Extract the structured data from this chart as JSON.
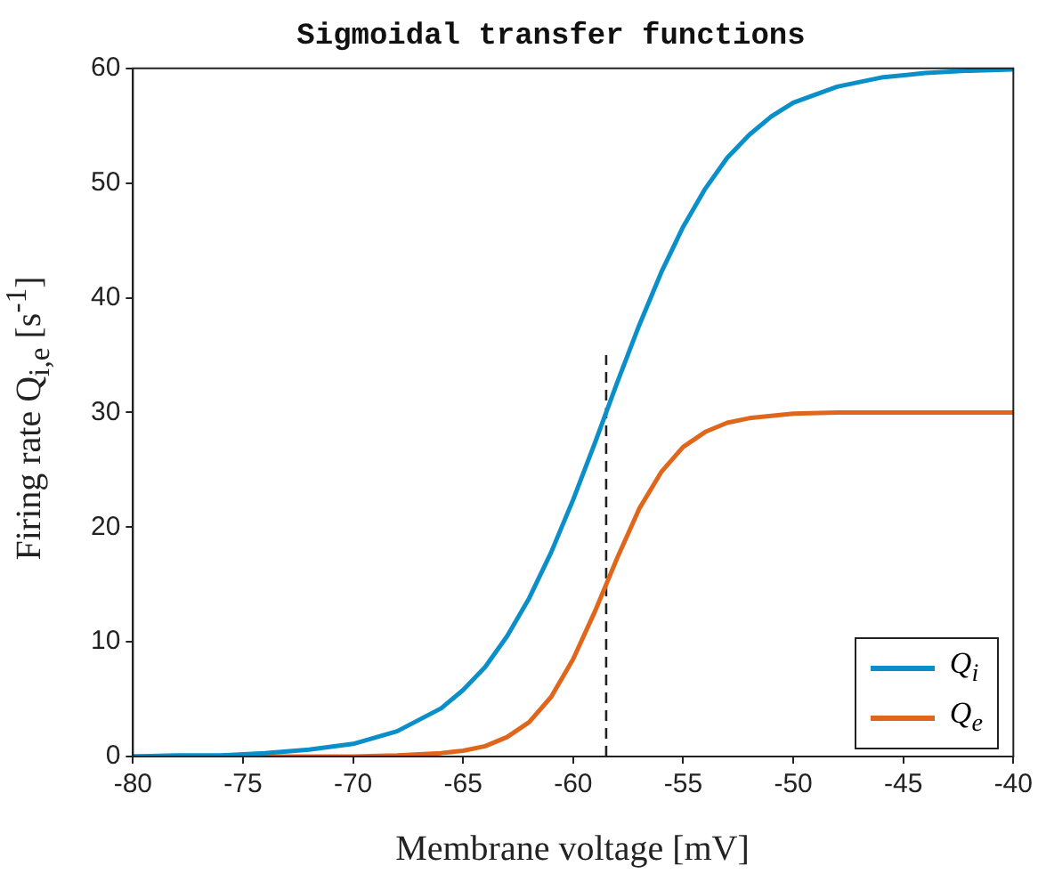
{
  "chart_data": {
    "type": "line",
    "title": "Sigmoidal transfer functions",
    "xlabel": "Membrane voltage [mV]",
    "ylabel": "Firing rate Q$_{i,e}$ [s$^{-1}$]",
    "xlim": [
      -80,
      -40
    ],
    "xticks": [
      -80,
      -75,
      -70,
      -65,
      -60,
      -55,
      -50,
      -45,
      -40
    ],
    "ylim": [
      0,
      60
    ],
    "yticks": [
      0,
      10,
      20,
      30,
      40,
      50,
      60
    ],
    "grid": false,
    "legend": "bottom right",
    "marker": "none",
    "series": [
      {
        "name": "Q$_{i}$",
        "color": "#0a8fc8",
        "x": [
          -80,
          -78,
          -76,
          -74,
          -72,
          -70,
          -68,
          -66,
          -65,
          -64,
          -63,
          -62,
          -61,
          -60,
          -59,
          -58,
          -57,
          -56,
          -55,
          -54,
          -53,
          -52,
          -51,
          -50,
          -48,
          -46,
          -44,
          -42,
          -40
        ],
        "values": [
          0,
          0.1,
          0.1,
          0.3,
          0.6,
          1.1,
          2.2,
          4.2,
          5.8,
          7.8,
          10.5,
          13.8,
          17.8,
          22.4,
          27.4,
          32.6,
          37.6,
          42.2,
          46.2,
          49.5,
          52.2,
          54.2,
          55.8,
          57.0,
          58.4,
          59.2,
          59.6,
          59.8,
          59.9
        ]
      },
      {
        "name": "Q$_{e}$",
        "color": "#e0661c",
        "x": [
          -80,
          -75,
          -70,
          -68,
          -66,
          -65,
          -64,
          -63,
          -62,
          -61,
          -60,
          -59,
          -58,
          -57,
          -56,
          -55,
          -54,
          -53,
          -52,
          -51,
          -50,
          -48,
          -45,
          -40
        ],
        "values": [
          0,
          0,
          0,
          0.1,
          0.3,
          0.5,
          0.9,
          1.7,
          3.0,
          5.2,
          8.5,
          12.7,
          17.3,
          21.6,
          24.8,
          27.0,
          28.3,
          29.1,
          29.5,
          29.7,
          29.9,
          30,
          30,
          30
        ]
      },
      {
        "type": "line",
        "line_style": "dashed",
        "color": "#222222",
        "x": [
          -58.5,
          -58.5
        ],
        "values": [
          0,
          35
        ]
      }
    ]
  }
}
